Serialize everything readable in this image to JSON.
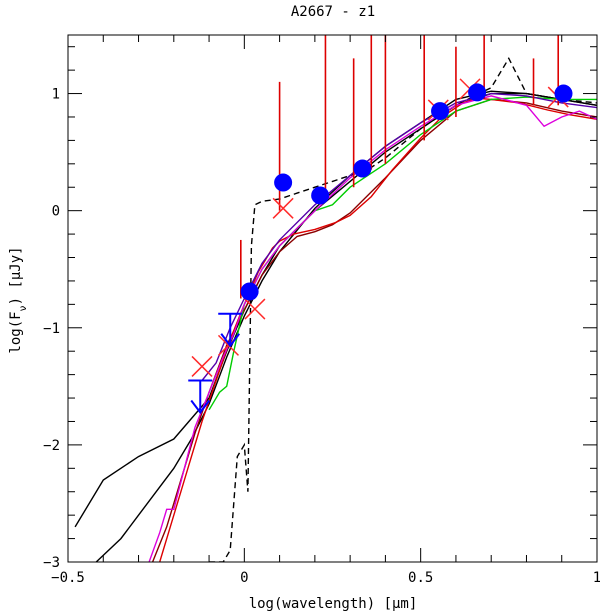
{
  "chart_data": {
    "type": "line",
    "title": "A2667 - z1",
    "xlabel_prefix": "log(wavelength) [",
    "xlabel_unit": "μm",
    "xlabel_suffix": "]",
    "ylabel_prefix": "log(F",
    "ylabel_sub": "ν",
    "ylabel_suffix": ") [μJy]",
    "xlim": [
      -0.5,
      1.0
    ],
    "ylim": [
      -3.0,
      1.5
    ],
    "xticks": [
      -0.5,
      0,
      0.5,
      1
    ],
    "xtick_labels": [
      "−0.5",
      "0",
      "0.5",
      "1"
    ],
    "yticks": [
      -3,
      -2,
      -1,
      0,
      1
    ],
    "ytick_labels": [
      "−3",
      "−2",
      "−1",
      "0",
      "1"
    ],
    "colors": {
      "photometry": "#0000ff",
      "model_black": "#000000",
      "model_red": "#dd0000",
      "model_darkred": "#8b0000",
      "model_green": "#00cc00",
      "model_magenta": "#dd00dd",
      "model_purple": "#5500aa",
      "model_crosses": "#ff2a2a"
    },
    "photometry": [
      {
        "x": 0.015,
        "y": -0.69
      },
      {
        "x": 0.11,
        "y": 0.24
      },
      {
        "x": 0.215,
        "y": 0.13
      },
      {
        "x": 0.335,
        "y": 0.36
      },
      {
        "x": 0.555,
        "y": 0.85
      },
      {
        "x": 0.66,
        "y": 1.01
      },
      {
        "x": 0.905,
        "y": 1.0
      }
    ],
    "upper_limits": [
      {
        "x": -0.04,
        "y": -0.88
      },
      {
        "x": -0.125,
        "y": -1.45
      }
    ],
    "model_points": [
      {
        "x": -0.045,
        "y": -1.15
      },
      {
        "x": -0.12,
        "y": -1.33
      },
      {
        "x": 0.11,
        "y": 0.02
      },
      {
        "x": 0.03,
        "y": -0.84
      },
      {
        "x": 0.55,
        "y": 0.86
      },
      {
        "x": 0.64,
        "y": 1.04
      },
      {
        "x": 0.89,
        "y": 0.97
      }
    ],
    "series": [
      {
        "name": "black-solid-1",
        "color": "#000000",
        "dash": false,
        "x": [
          -0.48,
          -0.4,
          -0.3,
          -0.2,
          -0.1,
          -0.05,
          0,
          0.05,
          0.1,
          0.2,
          0.3,
          0.4,
          0.5,
          0.6,
          0.7,
          0.8,
          0.9,
          1.0
        ],
        "y": [
          -2.7,
          -2.3,
          -2.1,
          -1.95,
          -1.6,
          -1.2,
          -0.85,
          -0.55,
          -0.3,
          0.0,
          0.25,
          0.5,
          0.7,
          0.9,
          1.0,
          1.0,
          0.95,
          0.9
        ]
      },
      {
        "name": "black-solid-2",
        "color": "#000000",
        "dash": false,
        "x": [
          -0.42,
          -0.35,
          -0.3,
          -0.25,
          -0.2,
          -0.15,
          -0.1,
          -0.05,
          0,
          0.05,
          0.1,
          0.2,
          0.3,
          0.4,
          0.5,
          0.6,
          0.7,
          0.8,
          0.9,
          1.0
        ],
        "y": [
          -3.0,
          -2.8,
          -2.6,
          -2.4,
          -2.2,
          -1.95,
          -1.65,
          -1.25,
          -0.9,
          -0.6,
          -0.35,
          0.02,
          0.3,
          0.55,
          0.75,
          0.95,
          1.02,
          1.0,
          0.95,
          0.9
        ]
      },
      {
        "name": "black-dashed",
        "color": "#000000",
        "dash": true,
        "x": [
          -0.1,
          -0.06,
          -0.04,
          -0.02,
          0.0,
          0.01,
          0.02,
          0.03,
          0.05,
          0.1,
          0.15,
          0.2,
          0.25,
          0.3,
          0.35,
          0.4,
          0.5,
          0.6,
          0.7,
          0.75,
          0.8,
          0.9,
          1.0
        ],
        "y": [
          -3.0,
          -3.0,
          -2.9,
          -2.1,
          -2.0,
          -2.4,
          -0.3,
          0.05,
          0.08,
          0.1,
          0.15,
          0.2,
          0.25,
          0.3,
          0.35,
          0.45,
          0.7,
          0.9,
          1.05,
          1.3,
          1.0,
          0.95,
          0.92
        ]
      },
      {
        "name": "darkred",
        "color": "#8b0000",
        "dash": false,
        "x": [
          -0.26,
          -0.22,
          -0.18,
          -0.14,
          -0.1,
          -0.05,
          0,
          0.05,
          0.1,
          0.15,
          0.2,
          0.25,
          0.3,
          0.4,
          0.5,
          0.6,
          0.7,
          0.8,
          0.9,
          1.0
        ],
        "y": [
          -3.0,
          -2.7,
          -2.3,
          -1.9,
          -1.55,
          -1.15,
          -0.85,
          -0.55,
          -0.35,
          -0.22,
          -0.18,
          -0.12,
          -0.02,
          0.28,
          0.6,
          0.85,
          0.95,
          0.92,
          0.85,
          0.8
        ]
      },
      {
        "name": "red-emission",
        "color": "#dd0000",
        "dash": false,
        "x": [
          -0.24,
          -0.2,
          -0.16,
          -0.12,
          -0.08,
          -0.04,
          0,
          0.04,
          0.08,
          0.1,
          0.14,
          0.2,
          0.26,
          0.3,
          0.36,
          0.42,
          0.5,
          0.56,
          0.62,
          0.66,
          0.7,
          0.78,
          0.86,
          0.92,
          1.0
        ],
        "y": [
          -3.0,
          -2.6,
          -2.2,
          -1.8,
          -1.45,
          -1.1,
          -0.8,
          -0.52,
          -0.32,
          -0.26,
          -0.2,
          -0.16,
          -0.1,
          -0.04,
          0.12,
          0.35,
          0.62,
          0.8,
          0.92,
          0.96,
          0.95,
          0.92,
          0.86,
          0.82,
          0.78
        ]
      },
      {
        "name": "green",
        "color": "#00cc00",
        "dash": false,
        "x": [
          -0.1,
          -0.07,
          -0.05,
          -0.03,
          0,
          0.05,
          0.1,
          0.15,
          0.2,
          0.25,
          0.3,
          0.4,
          0.5,
          0.6,
          0.7,
          0.8,
          0.9,
          1.0
        ],
        "y": [
          -1.7,
          -1.55,
          -1.5,
          -1.2,
          -0.8,
          -0.5,
          -0.3,
          -0.15,
          0.0,
          0.05,
          0.2,
          0.4,
          0.65,
          0.85,
          0.95,
          0.97,
          0.95,
          0.95
        ]
      },
      {
        "name": "magenta",
        "color": "#dd00dd",
        "dash": false,
        "x": [
          -0.27,
          -0.24,
          -0.22,
          -0.2,
          -0.17,
          -0.14,
          -0.1,
          -0.06,
          -0.03,
          0,
          0.05,
          0.1,
          0.15,
          0.2,
          0.3,
          0.4,
          0.5,
          0.6,
          0.7,
          0.8,
          0.85,
          0.9,
          0.95,
          1.0
        ],
        "y": [
          -3.0,
          -2.75,
          -2.55,
          -2.55,
          -2.2,
          -1.85,
          -1.55,
          -1.25,
          -1.05,
          -0.8,
          -0.5,
          -0.3,
          -0.15,
          0.0,
          0.28,
          0.52,
          0.72,
          0.9,
          0.98,
          0.9,
          0.72,
          0.8,
          0.85,
          0.78
        ]
      },
      {
        "name": "purple",
        "color": "#5500aa",
        "dash": false,
        "x": [
          -0.12,
          -0.08,
          -0.04,
          0,
          0.05,
          0.1,
          0.2,
          0.3,
          0.4,
          0.5,
          0.6,
          0.7,
          0.8,
          0.9,
          1.0
        ],
        "y": [
          -1.45,
          -1.3,
          -1.0,
          -0.75,
          -0.45,
          -0.25,
          0.05,
          0.3,
          0.55,
          0.75,
          0.92,
          1.0,
          0.98,
          0.92,
          0.88
        ]
      }
    ],
    "emission_lines": [
      {
        "x": 0.1,
        "top": 1.1,
        "base": 0.0
      },
      {
        "x": -0.01,
        "top": -0.25,
        "base": -0.75
      },
      {
        "x": 0.23,
        "top": 1.5,
        "base": 0.1
      },
      {
        "x": 0.31,
        "top": 1.3,
        "base": 0.2
      },
      {
        "x": 0.36,
        "top": 1.5,
        "base": 0.35
      },
      {
        "x": 0.4,
        "top": 1.5,
        "base": 0.4
      },
      {
        "x": 0.51,
        "top": 1.5,
        "base": 0.6
      },
      {
        "x": 0.6,
        "top": 1.4,
        "base": 0.8
      },
      {
        "x": 0.68,
        "top": 1.5,
        "base": 0.95
      },
      {
        "x": 0.82,
        "top": 1.3,
        "base": 0.9
      },
      {
        "x": 0.89,
        "top": 1.5,
        "base": 0.9
      }
    ]
  }
}
